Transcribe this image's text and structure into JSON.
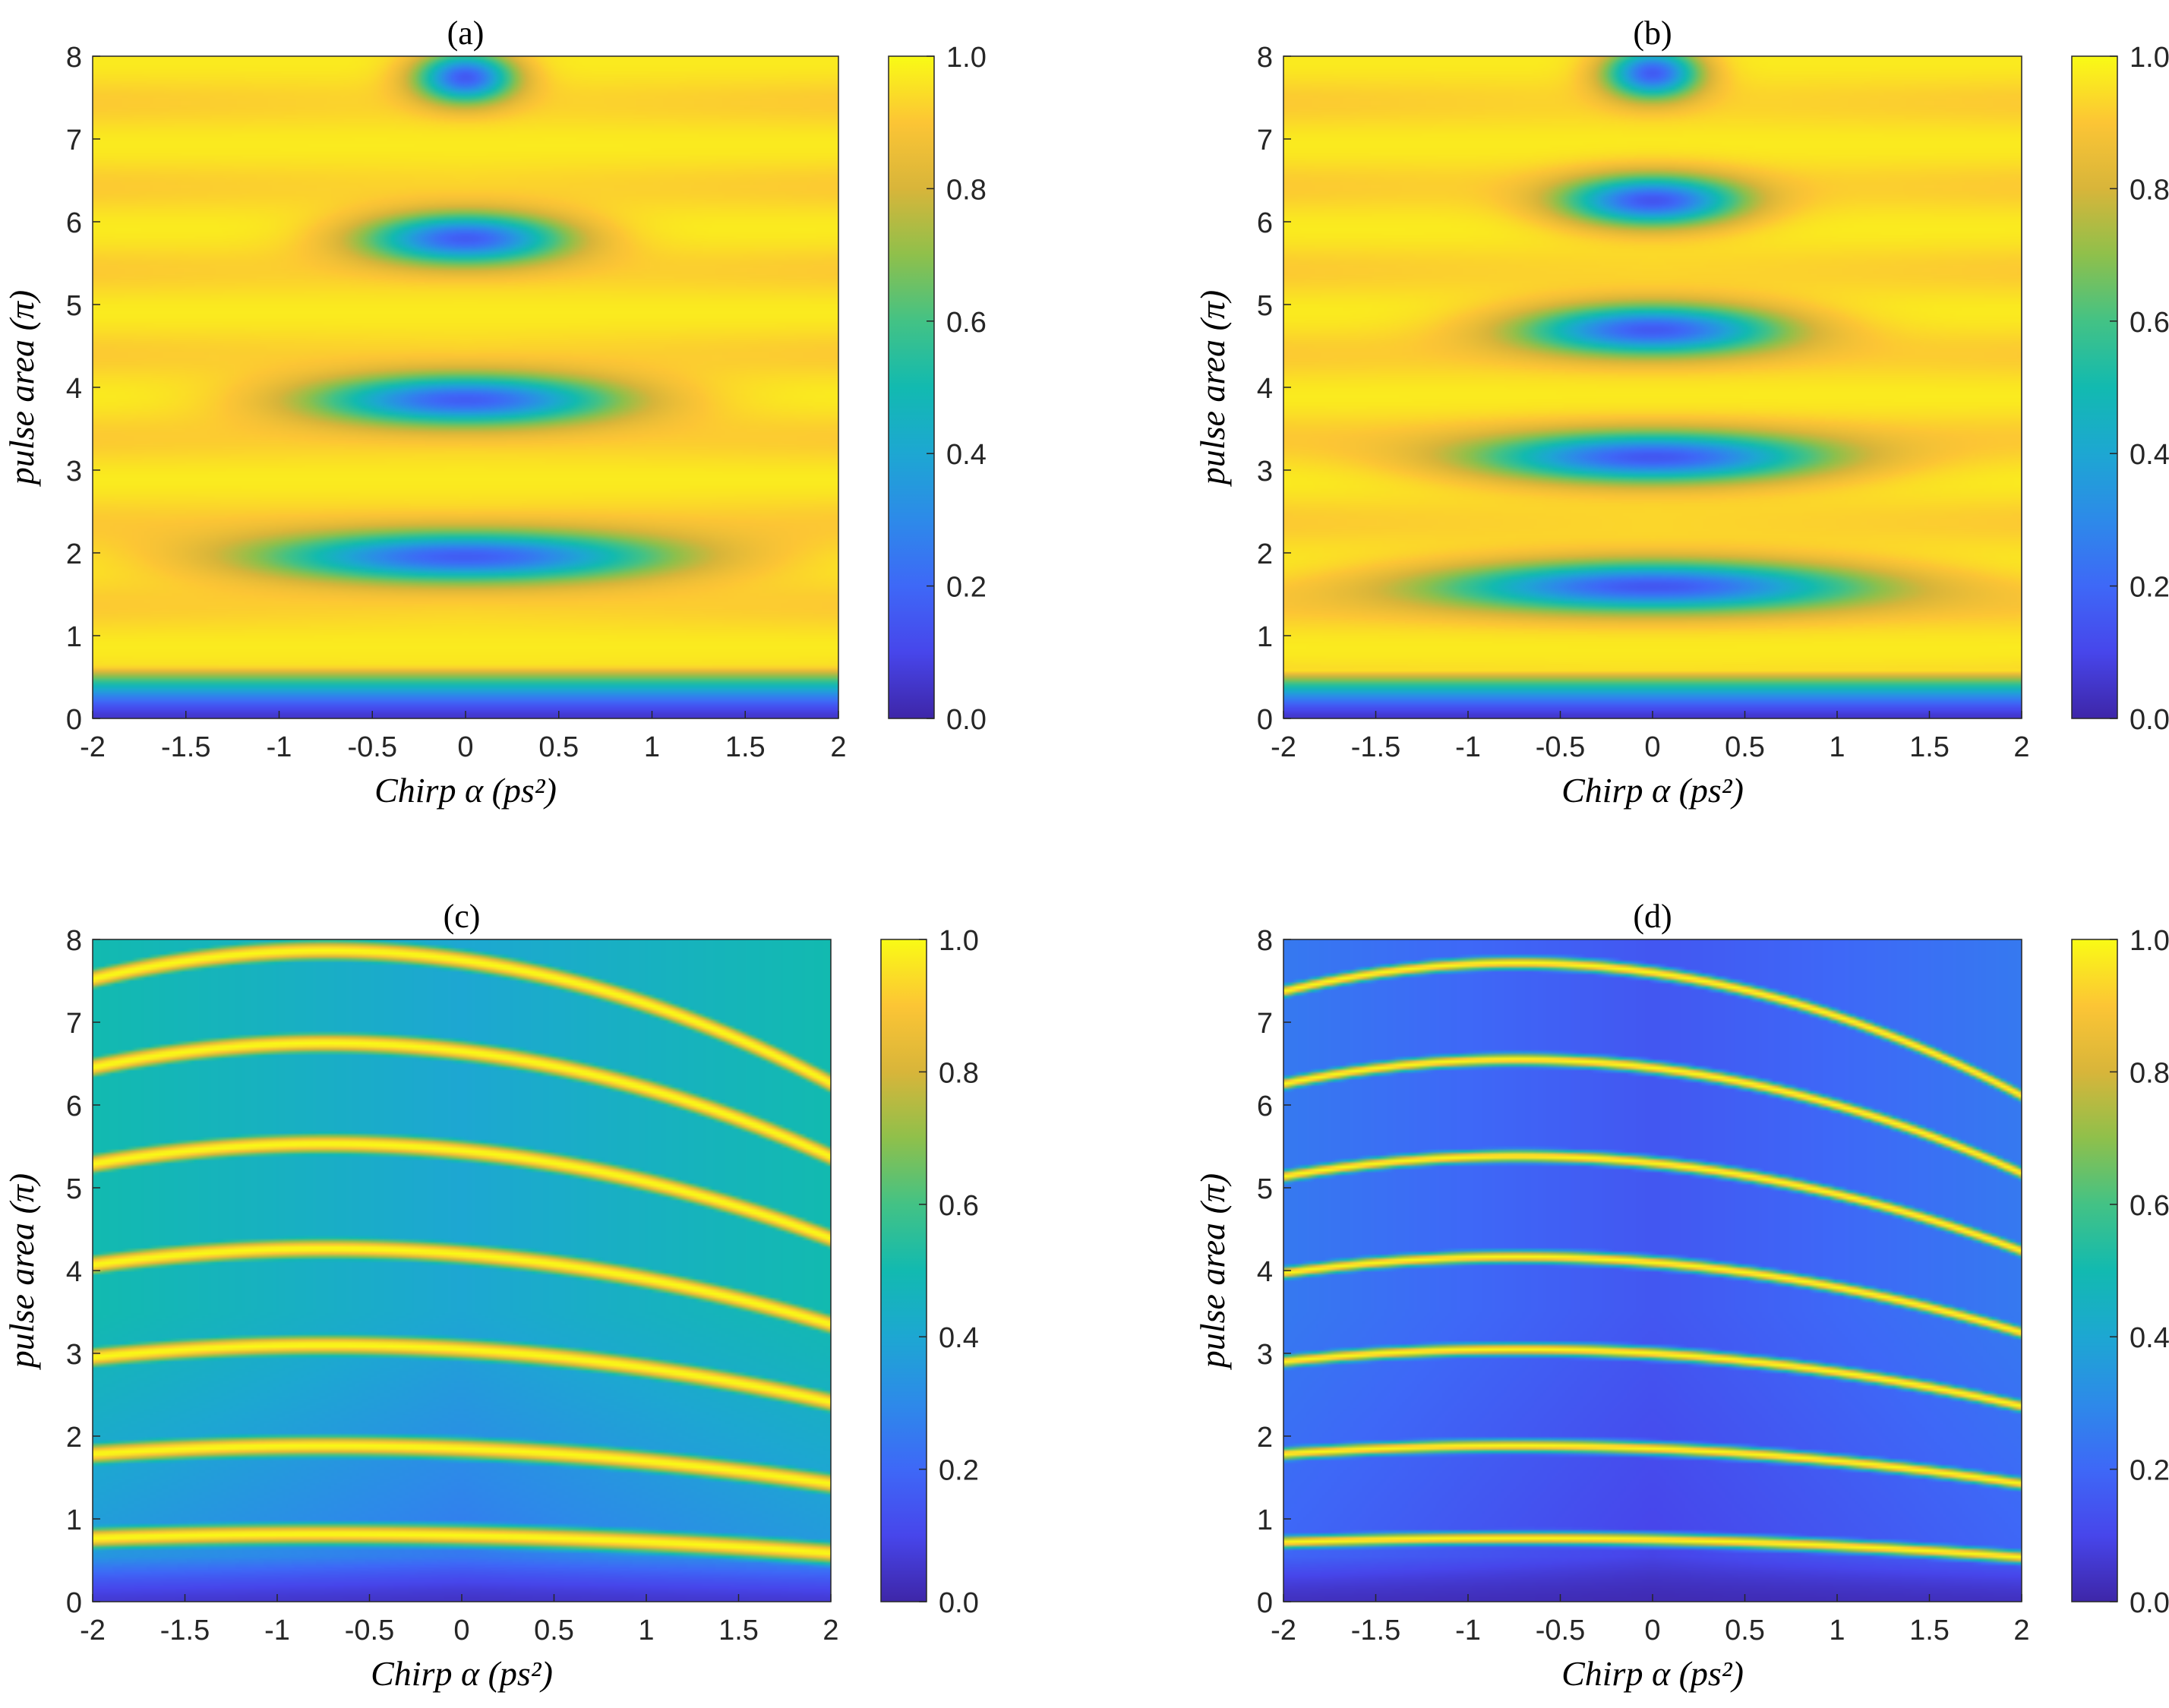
{
  "chart_data": [
    {
      "type": "heatmap",
      "title": "(a)",
      "xlabel": "Chirp α (ps²)",
      "ylabel": "pulse area (π)",
      "xlim": [
        -2,
        2
      ],
      "ylim": [
        0,
        8
      ],
      "x_ticks": [
        "-2",
        "-1.5",
        "-1",
        "-0.5",
        "0",
        "0.5",
        "1",
        "1.5",
        "2"
      ],
      "y_ticks": [
        "0",
        "1",
        "2",
        "3",
        "4",
        "5",
        "6",
        "7",
        "8"
      ],
      "colorbar": {
        "range": [
          0,
          1
        ],
        "ticks": [
          "0.0",
          "0.2",
          "0.4",
          "0.6",
          "0.8",
          "1.0"
        ],
        "colormap": "parula"
      },
      "pattern": {
        "kind": "bubbles",
        "low_region_top": 0.65,
        "minima_y": [
          1.95,
          3.85,
          5.8,
          7.75
        ],
        "minima_value": 0.1
      }
    },
    {
      "type": "heatmap",
      "title": "(b)",
      "xlabel": "Chirp α (ps²)",
      "ylabel": "pulse area (π)",
      "xlim": [
        -2,
        2
      ],
      "ylim": [
        0,
        8
      ],
      "x_ticks": [
        "-2",
        "-1.5",
        "-1",
        "-0.5",
        "0",
        "0.5",
        "1",
        "1.5",
        "2"
      ],
      "y_ticks": [
        "0",
        "1",
        "2",
        "3",
        "4",
        "5",
        "6",
        "7",
        "8"
      ],
      "colorbar": {
        "range": [
          0,
          1
        ],
        "ticks": [
          "0.0",
          "0.2",
          "0.4",
          "0.6",
          "0.8",
          "1.0"
        ],
        "colormap": "parula"
      },
      "pattern": {
        "kind": "bubbles",
        "low_region_top": 0.6,
        "minima_y": [
          1.6,
          3.15,
          4.7,
          6.25,
          7.8
        ],
        "minima_value": 0.1
      }
    },
    {
      "type": "heatmap",
      "title": "(c)",
      "xlabel": "Chirp α (ps²)",
      "ylabel": "pulse area (π)",
      "xlim": [
        -2,
        2
      ],
      "ylim": [
        0,
        8
      ],
      "x_ticks": [
        "-2",
        "-1.5",
        "-1",
        "-0.5",
        "0",
        "0.5",
        "1",
        "1.5",
        "2"
      ],
      "y_ticks": [
        "0",
        "1",
        "2",
        "3",
        "4",
        "5",
        "6",
        "7",
        "8"
      ],
      "colorbar": {
        "range": [
          0,
          1
        ],
        "ticks": [
          "0.0",
          "0.2",
          "0.4",
          "0.6",
          "0.8",
          "1.0"
        ],
        "colormap": "parula"
      },
      "pattern": {
        "kind": "bands",
        "band_center_y": [
          0.8,
          1.85,
          3.05,
          4.2,
          5.45,
          6.65,
          7.75
        ],
        "band_width": 0.17,
        "background": 0.4
      }
    },
    {
      "type": "heatmap",
      "title": "(d)",
      "xlabel": "Chirp α (ps²)",
      "ylabel": "pulse area (π)",
      "xlim": [
        -2,
        2
      ],
      "ylim": [
        0,
        8
      ],
      "x_ticks": [
        "-2",
        "-1.5",
        "-1",
        "-0.5",
        "0",
        "0.5",
        "1",
        "1.5",
        "2"
      ],
      "y_ticks": [
        "0",
        "1",
        "2",
        "3",
        "4",
        "5",
        "6",
        "7",
        "8"
      ],
      "colorbar": {
        "range": [
          0,
          1
        ],
        "ticks": [
          "0.0",
          "0.2",
          "0.4",
          "0.6",
          "0.8",
          "1.0"
        ],
        "colormap": "parula"
      },
      "pattern": {
        "kind": "bands",
        "band_center_y": [
          0.75,
          1.85,
          3.0,
          4.1,
          5.3,
          6.45,
          7.6
        ],
        "band_width": 0.09,
        "background": 0.15
      }
    }
  ]
}
